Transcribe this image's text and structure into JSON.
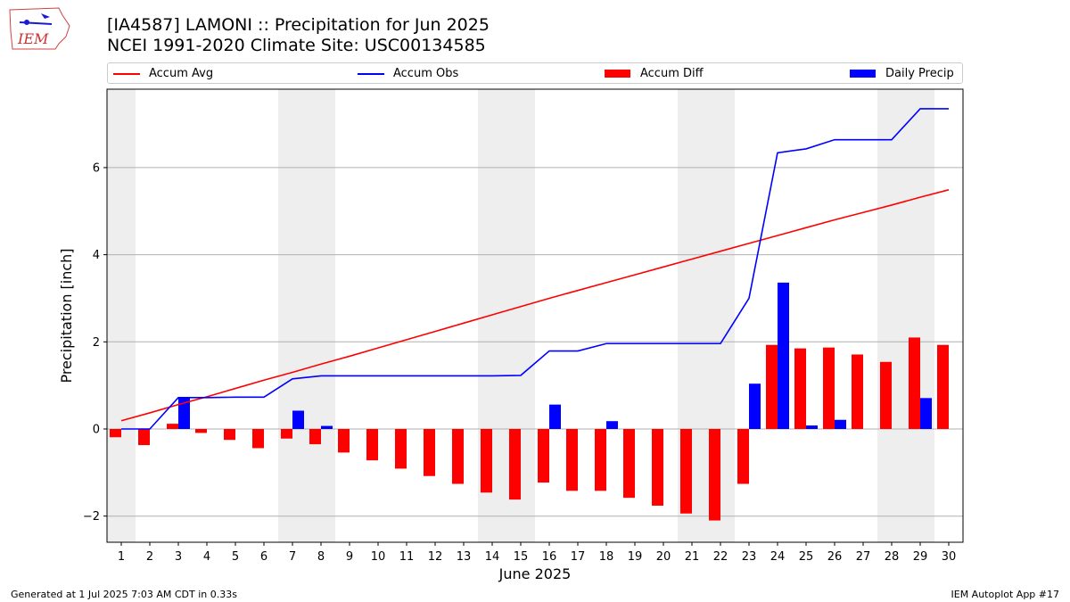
{
  "header": {
    "title": "[IA4587] LAMONI :: Precipitation for Jun 2025",
    "subtitle": "NCEI 1991-2020 Climate Site: USC00134585",
    "logo_text": "IEM"
  },
  "legend": {
    "items": [
      {
        "label": "Accum Avg",
        "kind": "line",
        "color": "#ff0000"
      },
      {
        "label": "Accum Obs",
        "kind": "line",
        "color": "#0000ff"
      },
      {
        "label": "Accum Diff",
        "kind": "box",
        "color": "#ff0000"
      },
      {
        "label": "Daily Precip",
        "kind": "box",
        "color": "#0000ff"
      }
    ]
  },
  "footer": {
    "left": "Generated at 1 Jul 2025 7:03 AM CDT in 0.33s",
    "right": "IEM Autoplot App #17"
  },
  "chart_data": {
    "type": "bar",
    "xlabel": "June 2025",
    "ylabel": "Precipitation [inch]",
    "ylim": [
      -2.6,
      7.8
    ],
    "yticks": [
      -2,
      0,
      2,
      4,
      6
    ],
    "xlim": [
      0.5,
      30.5
    ],
    "grid": "horizontal",
    "legend_position": "top",
    "weekend_shading": [
      [
        0.5,
        1.5
      ],
      [
        6.5,
        8.5
      ],
      [
        13.5,
        15.5
      ],
      [
        20.5,
        22.5
      ],
      [
        27.5,
        29.5
      ]
    ],
    "shading_color": "#eeeeee",
    "x": [
      1,
      2,
      3,
      4,
      5,
      6,
      7,
      8,
      9,
      10,
      11,
      12,
      13,
      14,
      15,
      16,
      17,
      18,
      19,
      20,
      21,
      22,
      23,
      24,
      25,
      26,
      27,
      28,
      29,
      30
    ],
    "series": [
      {
        "name": "Accum Avg",
        "kind": "line",
        "color": "#ff0000",
        "values": [
          0.19,
          0.37,
          0.56,
          0.74,
          0.93,
          1.12,
          1.3,
          1.49,
          1.67,
          1.86,
          2.05,
          2.24,
          2.43,
          2.62,
          2.81,
          3.0,
          3.18,
          3.36,
          3.54,
          3.72,
          3.9,
          4.08,
          4.26,
          4.44,
          4.62,
          4.8,
          4.97,
          5.14,
          5.32,
          5.49
        ]
      },
      {
        "name": "Accum Obs",
        "kind": "line",
        "color": "#0000ff",
        "values": [
          0.0,
          0.0,
          0.72,
          0.72,
          0.73,
          0.73,
          1.15,
          1.22,
          1.22,
          1.22,
          1.22,
          1.22,
          1.22,
          1.22,
          1.23,
          1.79,
          1.79,
          1.96,
          1.96,
          1.96,
          1.96,
          1.96,
          3.0,
          6.34,
          6.43,
          6.64,
          6.64,
          6.64,
          7.35,
          7.35
        ]
      },
      {
        "name": "Accum Diff",
        "kind": "bar",
        "color": "#ff0000",
        "values": [
          -0.19,
          -0.37,
          0.12,
          -0.09,
          -0.25,
          -0.44,
          -0.22,
          -0.35,
          -0.54,
          -0.72,
          -0.91,
          -1.08,
          -1.26,
          -1.46,
          -1.62,
          -1.23,
          -1.42,
          -1.42,
          -1.58,
          -1.76,
          -1.94,
          -2.1,
          -1.26,
          1.93,
          1.85,
          1.87,
          1.71,
          1.54,
          2.1,
          1.93
        ]
      },
      {
        "name": "Daily Precip",
        "kind": "bar",
        "color": "#0000ff",
        "values": [
          0.0,
          0.0,
          0.72,
          0.0,
          0.0,
          0.0,
          0.42,
          0.07,
          0.0,
          0.0,
          0.0,
          0.0,
          0.0,
          0.0,
          0.0,
          0.56,
          0.0,
          0.18,
          0.0,
          0.0,
          0.0,
          0.0,
          1.04,
          3.36,
          0.08,
          0.21,
          0.0,
          0.0,
          0.71,
          0.0
        ]
      }
    ]
  }
}
